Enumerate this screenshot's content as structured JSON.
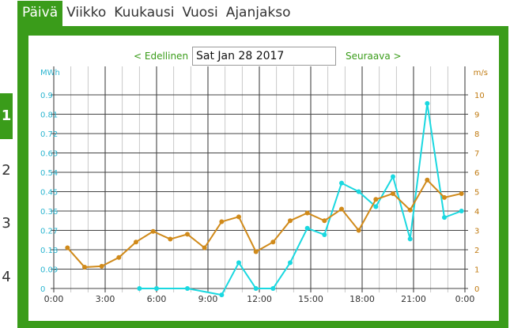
{
  "tabs": [
    {
      "label": "Päivä",
      "active": true
    },
    {
      "label": "Viikko",
      "active": false
    },
    {
      "label": "Kuukausi",
      "active": false
    },
    {
      "label": "Vuosi",
      "active": false
    },
    {
      "label": "Ajanjakso",
      "active": false
    }
  ],
  "side_pages": [
    "1",
    "2",
    "3",
    "4"
  ],
  "nav": {
    "prev_label": "< Edellinen",
    "next_label": "Seuraava >",
    "date_value": "Sat Jan 28 2017"
  },
  "colors": {
    "accent": "#3a9c1a",
    "energy": "#1ad8e0",
    "wind": "#d08a1a",
    "left_axis_text": "#2bb5d0",
    "right_axis_text": "#c07a10"
  },
  "chart_data": {
    "type": "line",
    "ylabel_left": "MWh",
    "ylabel_right": "m/s",
    "x_ticks": [
      "0:00",
      "3:00",
      "6:00",
      "9:00",
      "12:00",
      "15:00",
      "18:00",
      "21:00",
      "0:00"
    ],
    "x_range": [
      0,
      24
    ],
    "y_left_range": [
      0,
      0.9
    ],
    "y_left_ticks": [
      "0",
      "0.09",
      "0.18",
      "0.27",
      "0.36",
      "0.45",
      "0.54",
      "0.63",
      "0.72",
      "0.81",
      "0.9"
    ],
    "y_right_range": [
      0,
      10
    ],
    "y_right_ticks": [
      "0",
      "1",
      "2",
      "3",
      "4",
      "5",
      "6",
      "7",
      "8",
      "9",
      "10"
    ],
    "grid": true,
    "series": [
      {
        "axis": "left",
        "color": "#1ad8e0",
        "points": [
          [
            5,
            0
          ],
          [
            6,
            0
          ],
          [
            7.8,
            0
          ],
          [
            9.8,
            -0.03
          ],
          [
            10.8,
            0.12
          ],
          [
            11.8,
            0
          ],
          [
            12.8,
            0
          ],
          [
            13.8,
            0.12
          ],
          [
            14.8,
            0.28
          ],
          [
            15.8,
            0.25
          ],
          [
            16.8,
            0.49
          ],
          [
            17.8,
            0.45
          ],
          [
            18.8,
            0.38
          ],
          [
            19.8,
            0.52
          ],
          [
            20.8,
            0.23
          ],
          [
            21.8,
            0.86
          ],
          [
            22.8,
            0.33
          ],
          [
            23.8,
            0.36
          ]
        ]
      },
      {
        "axis": "right",
        "color": "#d08a1a",
        "points": [
          [
            0.8,
            2.1
          ],
          [
            1.8,
            1.1
          ],
          [
            2.8,
            1.15
          ],
          [
            3.8,
            1.6
          ],
          [
            4.8,
            2.4
          ],
          [
            5.8,
            2.95
          ],
          [
            6.8,
            2.55
          ],
          [
            7.8,
            2.8
          ],
          [
            8.8,
            2.1
          ],
          [
            9.8,
            3.45
          ],
          [
            10.8,
            3.7
          ],
          [
            11.8,
            1.9
          ],
          [
            12.8,
            2.4
          ],
          [
            13.8,
            3.5
          ],
          [
            14.8,
            3.9
          ],
          [
            15.8,
            3.5
          ],
          [
            16.8,
            4.1
          ],
          [
            17.8,
            3
          ],
          [
            18.8,
            4.6
          ],
          [
            19.8,
            4.9
          ],
          [
            20.8,
            4.05
          ],
          [
            21.8,
            5.6
          ],
          [
            22.8,
            4.7
          ],
          [
            23.8,
            4.9
          ]
        ]
      }
    ]
  }
}
